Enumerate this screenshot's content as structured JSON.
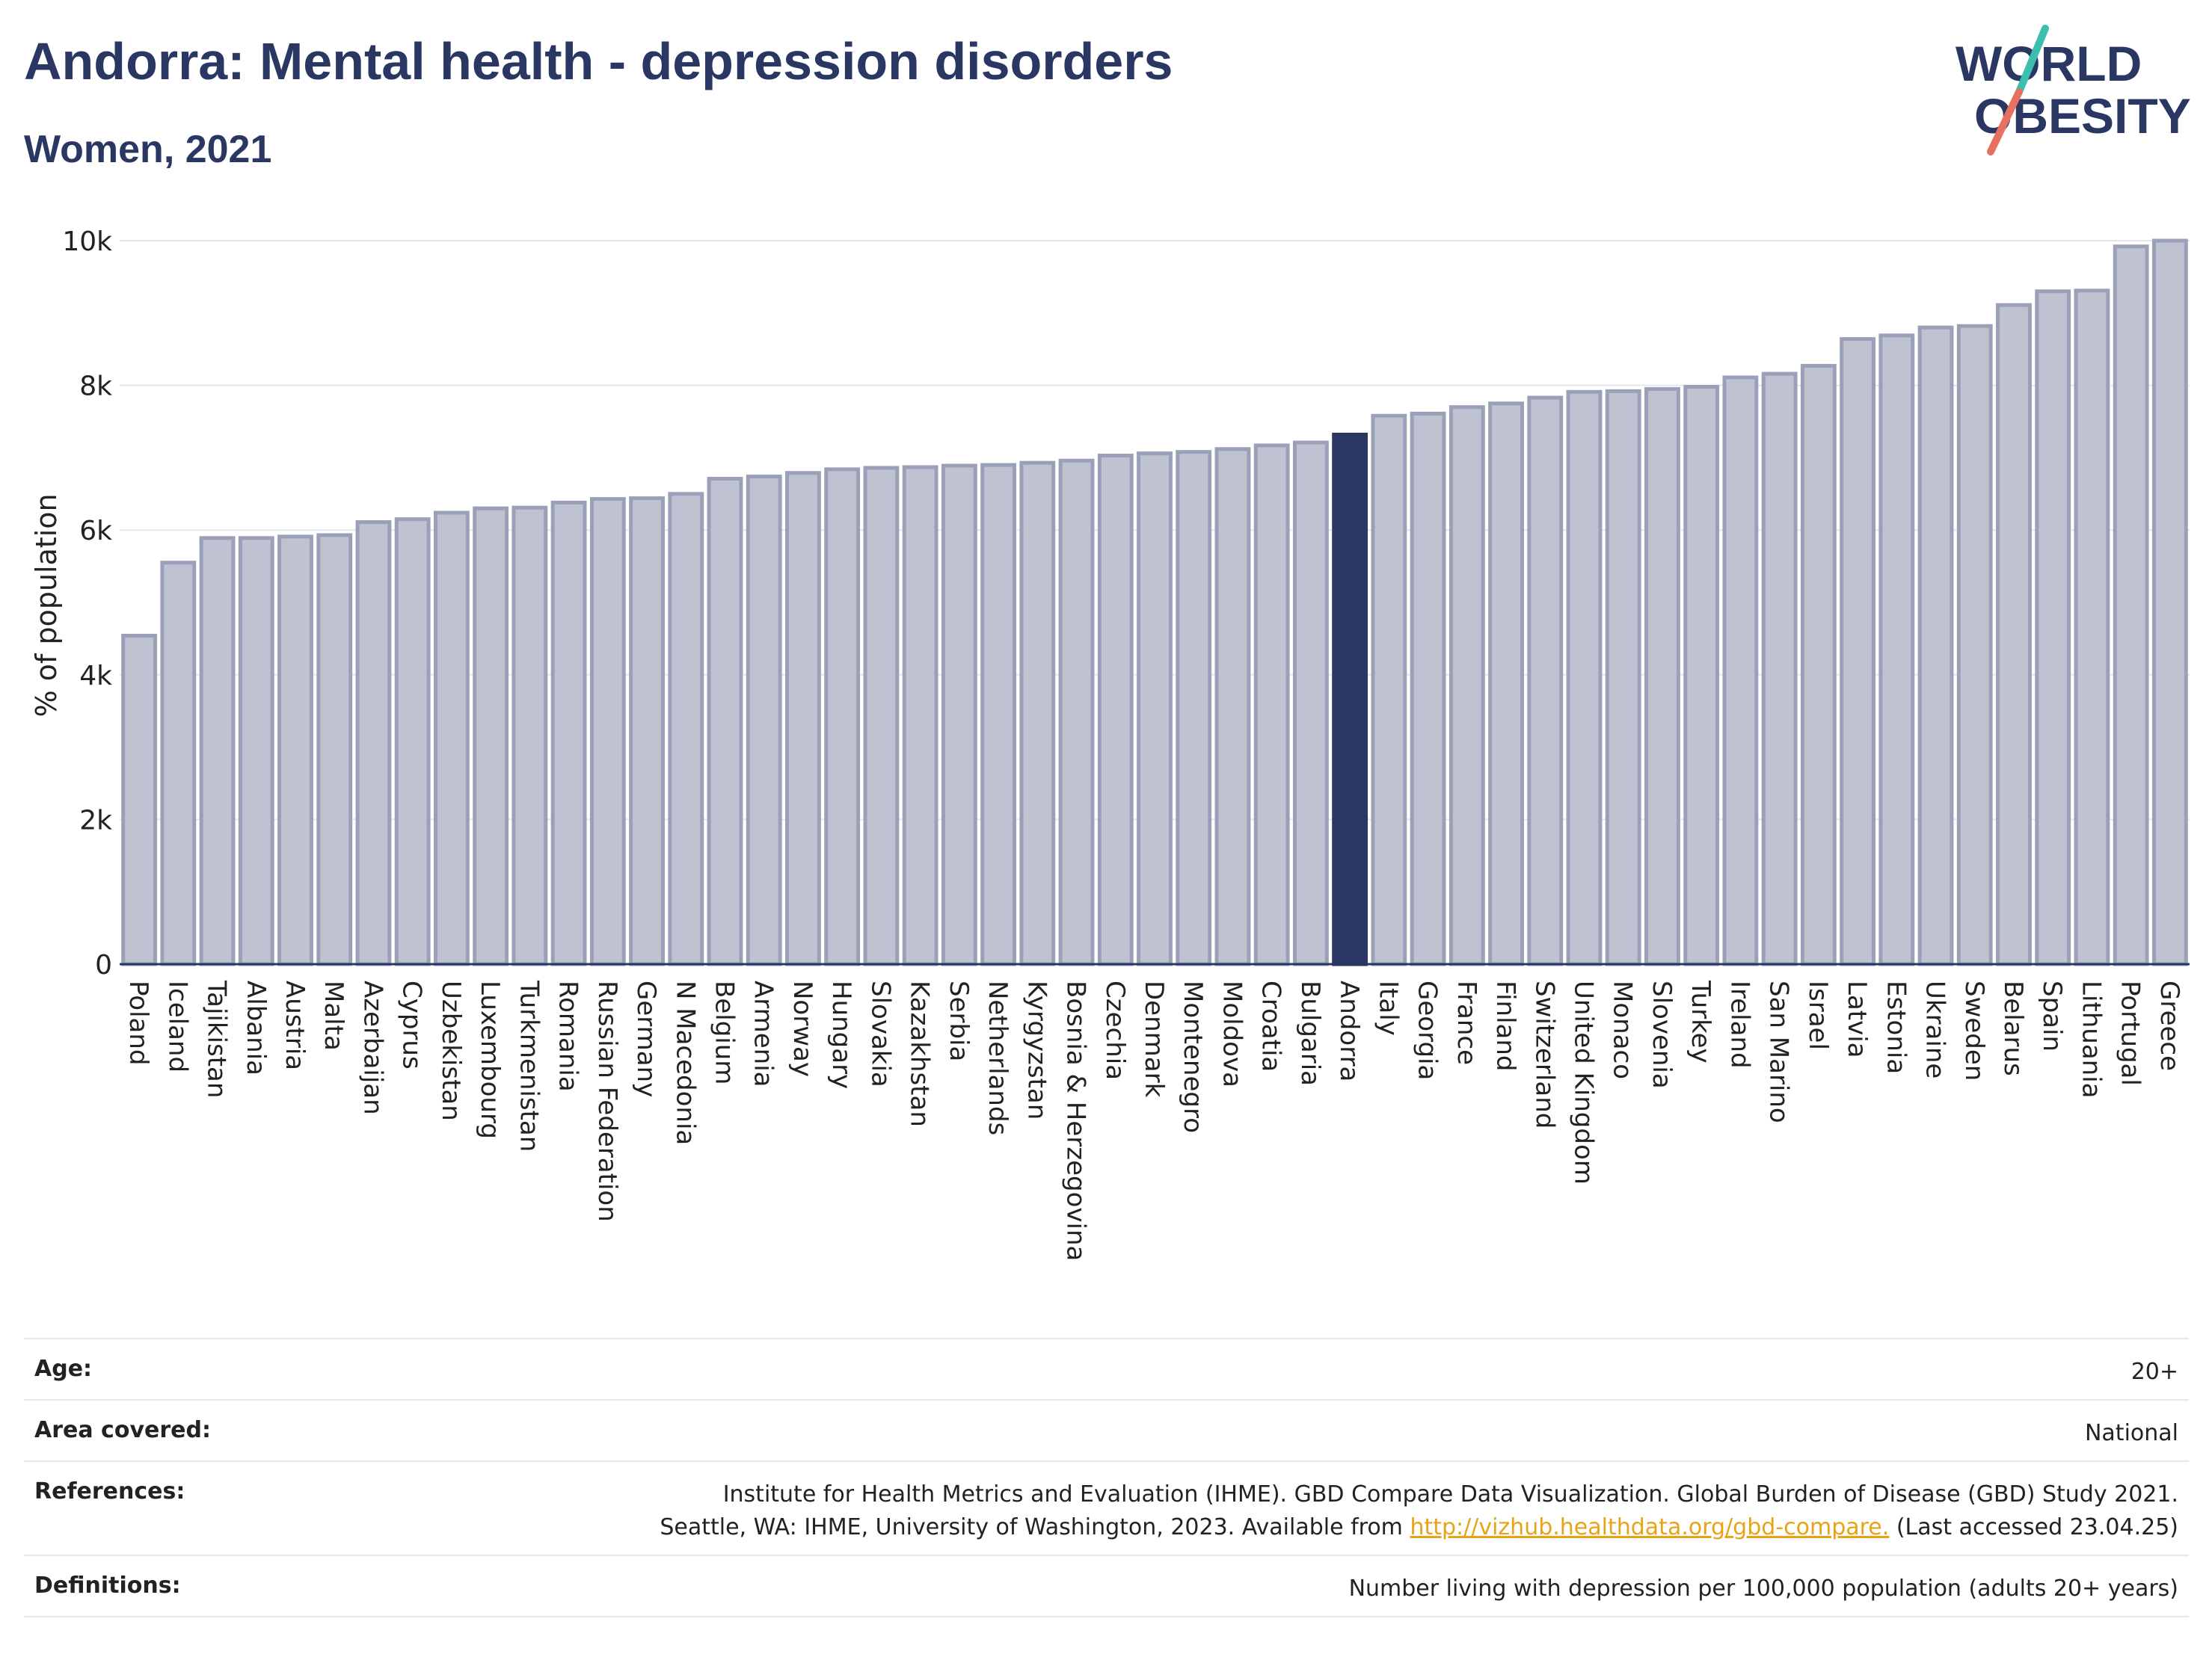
{
  "header": {
    "title": "Andorra: Mental health - depression disorders",
    "subtitle": "Women, 2021"
  },
  "logo": {
    "line1": "WORLD",
    "line2": "OBESITY"
  },
  "colors": {
    "bar": "#bfc3d1",
    "bar_stroke": "#9aa0b8",
    "highlight": "#2b3763",
    "title": "#2b3763",
    "link": "#e8a317",
    "logo_teal": "#3dbfb0",
    "logo_red": "#e8705e"
  },
  "chart_data": {
    "type": "bar",
    "ylabel": "% of population",
    "ylim": [
      0,
      10000
    ],
    "yticks": [
      0,
      2000,
      4000,
      6000,
      8000,
      10000
    ],
    "ytick_labels": [
      "0",
      "2k",
      "4k",
      "6k",
      "8k",
      "10k"
    ],
    "grid": true,
    "highlight": "Andorra",
    "categories": [
      "Poland",
      "Iceland",
      "Tajikistan",
      "Albania",
      "Austria",
      "Malta",
      "Azerbaijan",
      "Cyprus",
      "Uzbekistan",
      "Luxembourg",
      "Turkmenistan",
      "Romania",
      "Russian Federation",
      "Germany",
      "N Macedonia",
      "Belgium",
      "Armenia",
      "Norway",
      "Hungary",
      "Slovakia",
      "Kazakhstan",
      "Serbia",
      "Netherlands",
      "Kyrgyzstan",
      "Bosnia & Herzegovina",
      "Czechia",
      "Denmark",
      "Montenegro",
      "Moldova",
      "Croatia",
      "Bulgaria",
      "Andorra",
      "Italy",
      "Georgia",
      "France",
      "Finland",
      "Switzerland",
      "United Kingdom",
      "Monaco",
      "Slovenia",
      "Turkey",
      "Ireland",
      "San Marino",
      "Israel",
      "Latvia",
      "Estonia",
      "Ukraine",
      "Sweden",
      "Belarus",
      "Spain",
      "Lithuania",
      "Portugal",
      "Greece"
    ],
    "values": [
      4540,
      5550,
      5890,
      5890,
      5910,
      5930,
      6110,
      6150,
      6240,
      6300,
      6310,
      6380,
      6430,
      6440,
      6500,
      6710,
      6740,
      6790,
      6840,
      6860,
      6870,
      6890,
      6900,
      6930,
      6960,
      7030,
      7060,
      7080,
      7120,
      7170,
      7210,
      7320,
      7580,
      7610,
      7700,
      7750,
      7830,
      7910,
      7920,
      7950,
      7980,
      8110,
      8160,
      8270,
      8640,
      8690,
      8800,
      8820,
      9110,
      9300,
      9310,
      9920,
      10000
    ]
  },
  "info": {
    "age_label": "Age:",
    "age_value": "20+",
    "area_label": "Area covered:",
    "area_value": "National",
    "ref_label": "References:",
    "ref_line1": "Institute for Health Metrics and Evaluation (IHME). GBD Compare Data Visualization. Global Burden of Disease (GBD) Study 2021.",
    "ref_line2_pre": "Seattle, WA: IHME, University of Washington, 2023. Available from ",
    "ref_link": "http://vizhub.healthdata.org/gbd-compare.",
    "ref_line2_post": " (Last accessed 23.04.25)",
    "def_label": "Definitions:",
    "def_value": "Number living with depression per 100,000 population (adults 20+ years)"
  }
}
